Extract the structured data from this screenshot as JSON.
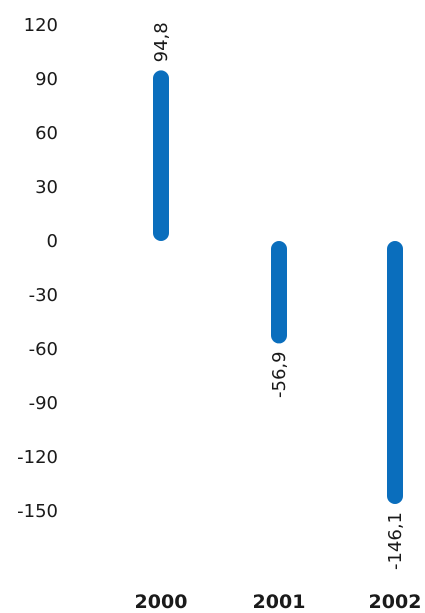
{
  "chart_data": {
    "type": "bar",
    "categories": [
      "2000",
      "2001",
      "2002"
    ],
    "values": [
      94.8,
      -56.9,
      -146.1
    ],
    "value_labels": [
      "94,8",
      "-56,9",
      "-146,1"
    ],
    "y_ticks": [
      {
        "value": 120,
        "label": "120"
      },
      {
        "value": 90,
        "label": "90"
      },
      {
        "value": 60,
        "label": "60"
      },
      {
        "value": 30,
        "label": "30"
      },
      {
        "value": 0,
        "label": "0"
      },
      {
        "value": -30,
        "label": "-30"
      },
      {
        "value": -60,
        "label": "-60"
      },
      {
        "value": -90,
        "label": "-90"
      },
      {
        "value": -120,
        "label": "-120"
      },
      {
        "value": -150,
        "label": "-150"
      }
    ],
    "ylim": [
      -150,
      120
    ],
    "grid": false,
    "colors": {
      "bar": "#0a6ebd",
      "text": "#1a1a1a"
    },
    "title": "",
    "xlabel": "",
    "ylabel": ""
  }
}
